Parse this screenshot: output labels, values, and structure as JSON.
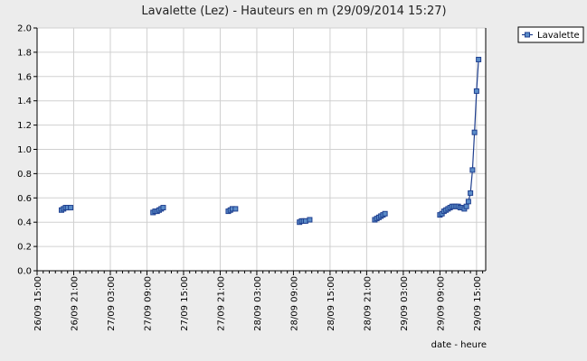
{
  "chart_data": {
    "type": "line",
    "title": "Lavalette (Lez) - Hauteurs en m (29/09/2014 15:27)",
    "xlabel": "date - heure",
    "ylabel": "",
    "ylim": [
      0,
      2.0
    ],
    "yticks": [
      "0.0",
      "0.2",
      "0.4",
      "0.6",
      "0.8",
      "1.0",
      "1.2",
      "1.4",
      "1.6",
      "1.8",
      "2.0"
    ],
    "xlim": [
      "26/09 15:00",
      "29/09 16:30"
    ],
    "xticks": [
      "26/09 15:00",
      "26/09 21:00",
      "27/09 03:00",
      "27/09 09:00",
      "27/09 15:00",
      "27/09 21:00",
      "28/09 03:00",
      "28/09 09:00",
      "28/09 15:00",
      "28/09 21:00",
      "29/09 03:00",
      "29/09 09:00",
      "29/09 15:00"
    ],
    "grid": true,
    "legend": "top-right",
    "series": [
      {
        "name": "Lavalette",
        "color": "#1F3F8F",
        "marker_color": "#5B8DC9",
        "segments": [
          [
            [
              "26/09 19:00",
              0.5
            ],
            [
              "26/09 19:20",
              0.51
            ],
            [
              "26/09 19:40",
              0.52
            ],
            [
              "26/09 20:00",
              0.52
            ],
            [
              "26/09 20:30",
              0.52
            ]
          ],
          [
            [
              "27/09 10:00",
              0.48
            ],
            [
              "27/09 10:20",
              0.49
            ],
            [
              "27/09 10:40",
              0.49
            ],
            [
              "27/09 11:00",
              0.5
            ],
            [
              "27/09 11:20",
              0.51
            ],
            [
              "27/09 11:40",
              0.52
            ]
          ],
          [
            [
              "27/09 22:20",
              0.49
            ],
            [
              "27/09 22:40",
              0.5
            ],
            [
              "27/09 23:00",
              0.51
            ],
            [
              "27/09 23:30",
              0.51
            ]
          ],
          [
            [
              "28/09 10:00",
              0.4
            ],
            [
              "28/09 10:20",
              0.41
            ],
            [
              "28/09 10:40",
              0.41
            ],
            [
              "28/09 11:00",
              0.41
            ],
            [
              "28/09 11:40",
              0.42
            ]
          ],
          [
            [
              "28/09 22:20",
              0.42
            ],
            [
              "28/09 22:40",
              0.43
            ],
            [
              "28/09 23:00",
              0.44
            ],
            [
              "28/09 23:20",
              0.45
            ],
            [
              "28/09 23:40",
              0.46
            ],
            [
              "29/09 00:00",
              0.47
            ]
          ],
          [
            [
              "29/09 09:00",
              0.46
            ],
            [
              "29/09 09:20",
              0.47
            ],
            [
              "29/09 09:40",
              0.49
            ],
            [
              "29/09 10:00",
              0.5
            ],
            [
              "29/09 10:20",
              0.51
            ],
            [
              "29/09 10:40",
              0.52
            ],
            [
              "29/09 11:00",
              0.53
            ],
            [
              "29/09 11:20",
              0.53
            ],
            [
              "29/09 11:40",
              0.53
            ],
            [
              "29/09 12:00",
              0.53
            ],
            [
              "29/09 12:20",
              0.52
            ],
            [
              "29/09 12:40",
              0.52
            ],
            [
              "29/09 13:00",
              0.51
            ],
            [
              "29/09 13:20",
              0.53
            ],
            [
              "29/09 13:40",
              0.57
            ],
            [
              "29/09 14:00",
              0.64
            ],
            [
              "29/09 14:20",
              0.83
            ],
            [
              "29/09 14:40",
              1.14
            ],
            [
              "29/09 15:00",
              1.48
            ],
            [
              "29/09 15:20",
              1.74
            ]
          ]
        ]
      }
    ]
  }
}
